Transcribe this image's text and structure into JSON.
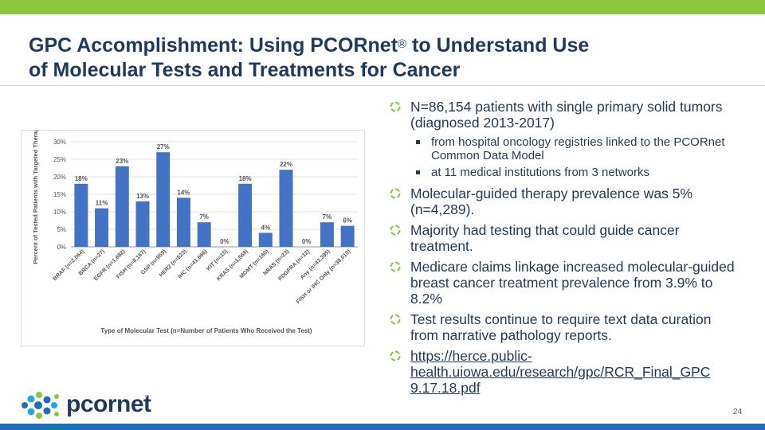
{
  "title": {
    "line1": "GPC Accomplishment: Using PCORnet",
    "sup": "®",
    "line1_end": " to Understand Use",
    "line2": "of Molecular Tests and Treatments for Cancer"
  },
  "bullets": [
    {
      "text": "N=86,154 patients with single primary solid tumors (diagnosed 2013-2017)",
      "sub": [
        "from hospital oncology registries linked to the PCORnet Common Data Model",
        "at 11 medical institutions from 3 networks"
      ]
    },
    {
      "text": "Molecular-guided therapy prevalence was 5% (n=4,289)."
    },
    {
      "text": "Majority had testing that could guide cancer treatment."
    },
    {
      "text": "Medicare claims linkage increased molecular-guided breast cancer treatment prevalence from 3.9% to 8.2%"
    },
    {
      "text": "Test results continue to require text data curation from narrative pathology reports."
    },
    {
      "text": "https://herce.public-health.uiowa.edu/research/gpc/RCR_Final_GPC 9.17.18.pdf"
    }
  ],
  "logo": {
    "text": "pcornet",
    "tm": "™"
  },
  "page_number": "24",
  "colors": {
    "accent_green": "#8cc63f",
    "brand_blue": "#1f6fb5",
    "bar": "#4472c4",
    "title_navy": "#1f3a5c"
  },
  "chart_data": {
    "type": "bar",
    "xlabel": "Type of Molecular Test (n=Number of Patients Who Received the Test)",
    "ylabel": "Percent of Tested Patients with Targeted Therapy",
    "ylim": [
      0,
      30
    ],
    "yticks": [
      "0%",
      "5%",
      "10%",
      "15%",
      "20%",
      "25%",
      "30%"
    ],
    "grid": true,
    "categories": [
      "BRAF (n=2,064)",
      "BRCA (n=27)",
      "EGFR (n=1,682)",
      "FISH (n=8,167)",
      "GSP (n=959)",
      "HER2 (n=523)",
      "IHC (n=41,666)",
      "KIT (n=15)",
      "KRAS (n=1,568)",
      "MGMT (n=160)",
      "NRAS (n=23)",
      "PDGFRA (n=12)",
      "Any (n=43,395)",
      "FISH or IHC Only (n=38,010)"
    ],
    "values": [
      18,
      11,
      23,
      13,
      27,
      14,
      7,
      0,
      18,
      4,
      22,
      0,
      7,
      6
    ],
    "labels": [
      "18%",
      "11%",
      "23%",
      "13%",
      "27%",
      "14%",
      "7%",
      "0%",
      "18%",
      "4%",
      "22%",
      "0%",
      "7%",
      "6%"
    ]
  }
}
